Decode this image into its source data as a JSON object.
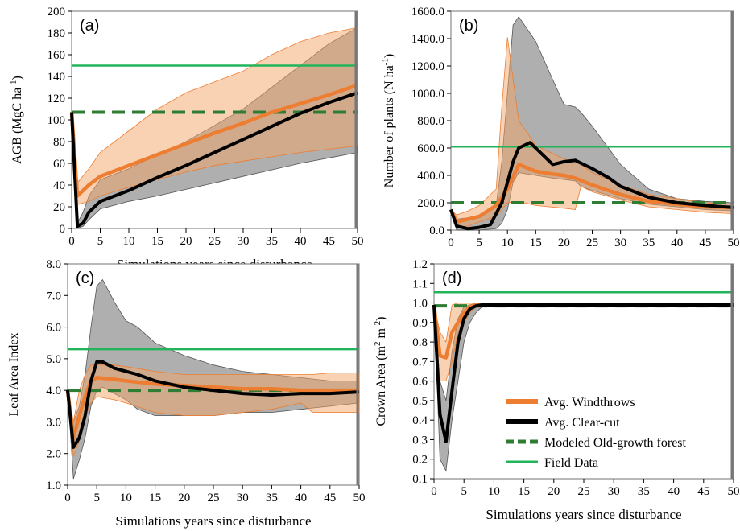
{
  "legend": [
    {
      "label": "Avg. Windthrows",
      "color": "#ed7d31",
      "style": "thick"
    },
    {
      "label": "Avg. Clear-cut",
      "color": "#000000",
      "style": "thick"
    },
    {
      "label": "Modeled Old-growth forest",
      "color": "#2e7d32",
      "style": "dashed"
    },
    {
      "label": "Field Data",
      "color": "#22b45a",
      "style": "solid"
    }
  ],
  "colors": {
    "windthrow_line": "#ed7d31",
    "windthrow_band": "#f4a56a",
    "clearcut_line": "#000000",
    "clearcut_band": "#6e6e6e",
    "old_growth": "#2e7d32",
    "field": "#22b45a"
  },
  "chart_data": [
    {
      "panel": "(a)",
      "type": "area",
      "ylabel": "AGB (MgC ha-1)",
      "xlabel": "Simulations years since disturbance",
      "xlim": [
        0,
        50
      ],
      "ylim": [
        0,
        200
      ],
      "xticks": [
        "0",
        "5",
        "10",
        "15",
        "20",
        "25",
        "30",
        "35",
        "40",
        "45",
        "50"
      ],
      "yticks": [
        "0",
        "20",
        "40",
        "60",
        "80",
        "100",
        "120",
        "140",
        "160",
        "180",
        "200"
      ],
      "field_data": 150,
      "old_growth": 107,
      "windthrow": {
        "x": [
          0,
          1,
          3,
          5,
          10,
          15,
          20,
          25,
          30,
          35,
          40,
          45,
          50
        ],
        "y": [
          107,
          30,
          40,
          48,
          58,
          68,
          78,
          88,
          97,
          107,
          115,
          123,
          132
        ]
      },
      "windthrow_band": {
        "x": [
          0,
          1,
          3,
          5,
          10,
          15,
          20,
          25,
          30,
          35,
          40,
          45,
          50
        ],
        "low": [
          107,
          22,
          25,
          30,
          38,
          45,
          52,
          58,
          62,
          66,
          70,
          73,
          76
        ],
        "high": [
          107,
          42,
          55,
          70,
          90,
          110,
          125,
          135,
          145,
          160,
          172,
          180,
          185
        ]
      },
      "clearcut": {
        "x": [
          0,
          1,
          2,
          3,
          5,
          10,
          15,
          20,
          25,
          30,
          35,
          40,
          45,
          50
        ],
        "y": [
          107,
          2,
          5,
          15,
          25,
          35,
          47,
          58,
          70,
          82,
          94,
          106,
          116,
          125
        ]
      },
      "clearcut_band": {
        "x": [
          0,
          1,
          2,
          3,
          5,
          10,
          15,
          20,
          25,
          30,
          35,
          40,
          45,
          50
        ],
        "low": [
          107,
          0,
          2,
          8,
          18,
          25,
          30,
          36,
          42,
          48,
          54,
          60,
          65,
          70
        ],
        "high": [
          107,
          5,
          15,
          30,
          45,
          55,
          68,
          80,
          95,
          110,
          130,
          150,
          170,
          185
        ]
      }
    },
    {
      "panel": "(b)",
      "type": "area",
      "ylabel": "Number of plants (N ha-1)",
      "xlabel": "",
      "xlim": [
        0,
        50
      ],
      "ylim": [
        0,
        1600
      ],
      "xticks": [
        "0",
        "5",
        "10",
        "15",
        "20",
        "25",
        "30",
        "35",
        "40",
        "45",
        "50"
      ],
      "yticks": [
        "0.0",
        "200.0",
        "400.0",
        "600.0",
        "800.0",
        "1000.0",
        "1200.0",
        "1400.0",
        "1600.0"
      ],
      "field_data": 610,
      "old_growth": 200,
      "windthrow": {
        "x": [
          0,
          1,
          3,
          5,
          8,
          10,
          12,
          15,
          18,
          20,
          22,
          25,
          30,
          35,
          40,
          45,
          50
        ],
        "y": [
          150,
          60,
          80,
          100,
          180,
          300,
          480,
          430,
          410,
          400,
          380,
          330,
          260,
          210,
          190,
          170,
          165
        ]
      },
      "windthrow_band": {
        "x": [
          0,
          1,
          3,
          5,
          8,
          9,
          10,
          12,
          15,
          20,
          22,
          23,
          25,
          30,
          35,
          40,
          45,
          50
        ],
        "low": [
          150,
          20,
          30,
          60,
          100,
          150,
          200,
          210,
          180,
          160,
          150,
          320,
          280,
          220,
          170,
          150,
          130,
          120
        ],
        "high": [
          150,
          110,
          140,
          180,
          300,
          900,
          1410,
          800,
          620,
          520,
          500,
          480,
          420,
          330,
          260,
          230,
          200,
          190
        ]
      },
      "clearcut": {
        "x": [
          0,
          1,
          3,
          5,
          7,
          9,
          11,
          12,
          14,
          16,
          18,
          20,
          22,
          25,
          28,
          30,
          35,
          40,
          45,
          50
        ],
        "y": [
          150,
          30,
          10,
          20,
          40,
          200,
          500,
          600,
          640,
          560,
          480,
          500,
          510,
          450,
          380,
          320,
          240,
          200,
          180,
          165
        ]
      },
      "clearcut_band": {
        "x": [
          0,
          1,
          3,
          5,
          8,
          9,
          10,
          11,
          12,
          15,
          18,
          20,
          22,
          23,
          25,
          30,
          35,
          40,
          45,
          50
        ],
        "low": [
          150,
          0,
          0,
          0,
          10,
          50,
          150,
          350,
          420,
          400,
          380,
          370,
          360,
          320,
          290,
          230,
          190,
          170,
          150,
          140
        ],
        "high": [
          150,
          80,
          90,
          110,
          180,
          500,
          1000,
          1500,
          1560,
          1380,
          1100,
          920,
          900,
          860,
          760,
          480,
          300,
          230,
          210,
          200
        ]
      }
    },
    {
      "panel": "(c)",
      "type": "area",
      "ylabel": "Leaf Area Index",
      "xlabel": "Simulations years since disturbance",
      "xlim": [
        0,
        50
      ],
      "ylim": [
        1,
        8
      ],
      "xticks": [
        "0",
        "5",
        "10",
        "15",
        "20",
        "25",
        "30",
        "35",
        "40",
        "45",
        "50"
      ],
      "yticks": [
        "1.0",
        "2.0",
        "3.0",
        "4.0",
        "5.0",
        "6.0",
        "7.0",
        "8.0"
      ],
      "field_data": 5.3,
      "old_growth": 4.0,
      "windthrow": {
        "x": [
          0,
          1,
          2,
          3,
          4,
          5,
          8,
          10,
          15,
          20,
          25,
          30,
          35,
          40,
          45,
          50
        ],
        "y": [
          4.0,
          2.5,
          3.2,
          3.8,
          4.3,
          4.4,
          4.35,
          4.3,
          4.2,
          4.15,
          4.1,
          4.05,
          4.05,
          4.0,
          4.0,
          4.0
        ]
      },
      "windthrow_band": {
        "x": [
          0,
          1,
          2,
          3,
          4,
          5,
          8,
          10,
          15,
          20,
          25,
          30,
          35,
          40,
          42,
          45,
          50
        ],
        "low": [
          4.0,
          1.9,
          2.4,
          3.2,
          3.6,
          3.8,
          3.7,
          3.6,
          3.3,
          3.2,
          3.2,
          3.3,
          3.4,
          3.6,
          3.3,
          3.3,
          3.3
        ],
        "high": [
          4.0,
          3.0,
          4.0,
          4.5,
          4.8,
          4.8,
          4.8,
          4.75,
          4.6,
          4.5,
          4.5,
          4.5,
          4.5,
          4.5,
          4.5,
          4.55,
          4.55
        ]
      },
      "clearcut": {
        "x": [
          0,
          1,
          2,
          3,
          4,
          5,
          6,
          8,
          10,
          12,
          15,
          20,
          25,
          30,
          35,
          40,
          45,
          50
        ],
        "y": [
          4.0,
          2.2,
          2.5,
          3.2,
          4.3,
          4.9,
          4.9,
          4.7,
          4.6,
          4.5,
          4.3,
          4.1,
          4.0,
          3.9,
          3.85,
          3.9,
          3.9,
          3.95
        ]
      },
      "clearcut_band": {
        "x": [
          0,
          1,
          2,
          3,
          4,
          5,
          6,
          8,
          10,
          12,
          15,
          20,
          25,
          30,
          35,
          40,
          45,
          50
        ],
        "low": [
          4.0,
          1.2,
          1.8,
          2.5,
          3.5,
          4.0,
          4.1,
          3.9,
          3.7,
          3.4,
          3.2,
          3.2,
          3.2,
          3.3,
          3.3,
          3.4,
          3.5,
          3.6
        ],
        "high": [
          4.0,
          3.0,
          3.5,
          4.5,
          6.0,
          7.3,
          7.5,
          6.8,
          6.2,
          6.0,
          5.5,
          5.1,
          4.8,
          4.6,
          4.5,
          4.4,
          4.3,
          4.3
        ]
      }
    },
    {
      "panel": "(d)",
      "type": "area",
      "ylabel": "Crown Area (m2 m-2)",
      "xlabel": "Simulations years since disturbance",
      "xlim": [
        0,
        50
      ],
      "ylim": [
        0.1,
        1.2
      ],
      "xticks": [
        "0",
        "5",
        "10",
        "15",
        "20",
        "25",
        "30",
        "35",
        "40",
        "45",
        "50"
      ],
      "yticks": [
        "0.1",
        "0.2",
        "0.3",
        "0.4",
        "0.5",
        "0.6",
        "0.7",
        "0.8",
        "0.9",
        "1.0",
        "1.1",
        "1.2"
      ],
      "field_data": 1.055,
      "old_growth": 0.985,
      "windthrow": {
        "x": [
          0,
          1,
          2,
          3,
          4,
          5,
          6,
          7,
          8,
          10,
          15,
          20,
          30,
          40,
          50
        ],
        "y": [
          0.99,
          0.73,
          0.72,
          0.85,
          0.9,
          0.95,
          0.98,
          0.99,
          0.99,
          0.99,
          0.99,
          0.99,
          0.99,
          0.99,
          0.99
        ]
      },
      "windthrow_band": {
        "x": [
          0,
          1,
          2,
          3,
          4,
          5,
          6,
          7,
          8,
          10,
          50
        ],
        "low": [
          0.99,
          0.6,
          0.6,
          0.7,
          0.85,
          0.9,
          0.95,
          0.98,
          0.99,
          0.99,
          0.99
        ],
        "high": [
          0.99,
          0.85,
          0.8,
          0.99,
          1.0,
          1.0,
          1.0,
          1.0,
          1.0,
          1.0,
          1.0
        ]
      },
      "clearcut": {
        "x": [
          0,
          1,
          2,
          3,
          4,
          5,
          6,
          7,
          8,
          10,
          15,
          20,
          30,
          40,
          50
        ],
        "y": [
          0.99,
          0.43,
          0.29,
          0.55,
          0.8,
          0.92,
          0.97,
          0.985,
          0.99,
          0.99,
          0.99,
          0.99,
          0.99,
          0.99,
          0.99
        ]
      },
      "clearcut_band": {
        "x": [
          0,
          1,
          2,
          3,
          4,
          5,
          6,
          7,
          8,
          10,
          50
        ],
        "low": [
          0.99,
          0.2,
          0.14,
          0.4,
          0.6,
          0.8,
          0.9,
          0.95,
          0.98,
          0.99,
          0.99
        ],
        "high": [
          0.99,
          0.6,
          0.5,
          0.75,
          0.92,
          0.98,
          0.99,
          1.0,
          1.0,
          1.0,
          1.0
        ]
      }
    }
  ]
}
